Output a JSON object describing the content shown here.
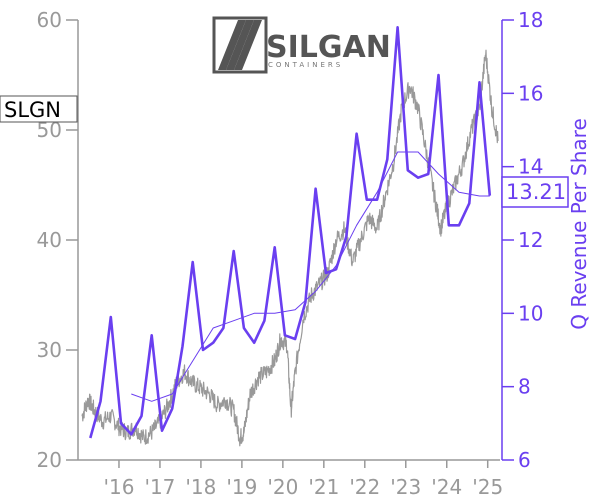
{
  "ticker": "SLGN",
  "logo": {
    "word": "SILGAN",
    "sub": "CONTAINERS"
  },
  "colors": {
    "price": "#999999",
    "revenue": "#6a3ff0",
    "trend": "#6a3ff0",
    "axis_left": "#999999",
    "axis_right": "#6a3ff0"
  },
  "chart_data": {
    "type": "line",
    "title": "",
    "ylabel_right": "Q Revenue Per Share",
    "x_ticks": [
      "'16",
      "'17",
      "'18",
      "'19",
      "'20",
      "'21",
      "'22",
      "'23",
      "'24",
      "'25"
    ],
    "xlim": [
      2015.0,
      2025.3
    ],
    "y_left": {
      "ticks": [
        20,
        30,
        40,
        50,
        60
      ],
      "lim": [
        20,
        60
      ]
    },
    "y_right": {
      "ticks": [
        6,
        8,
        10,
        12,
        14,
        16,
        18
      ],
      "lim": [
        6,
        18
      ]
    },
    "last_value_label": "13.21",
    "series": [
      {
        "axis": "left",
        "points": [
          [
            2015.1,
            24.0
          ],
          [
            2015.25,
            25.5
          ],
          [
            2015.4,
            24.5
          ],
          [
            2015.6,
            23.5
          ],
          [
            2015.8,
            24.0
          ],
          [
            2016.0,
            23.0
          ],
          [
            2016.2,
            22.5
          ],
          [
            2016.4,
            23.0
          ],
          [
            2016.6,
            22.0
          ],
          [
            2016.8,
            22.5
          ],
          [
            2017.0,
            23.5
          ],
          [
            2017.2,
            25.0
          ],
          [
            2017.4,
            27.0
          ],
          [
            2017.6,
            28.0
          ],
          [
            2017.8,
            27.0
          ],
          [
            2018.0,
            26.5
          ],
          [
            2018.2,
            26.0
          ],
          [
            2018.4,
            25.0
          ],
          [
            2018.6,
            25.5
          ],
          [
            2018.8,
            24.5
          ],
          [
            2018.95,
            22.0
          ],
          [
            2019.05,
            22.5
          ],
          [
            2019.2,
            26.0
          ],
          [
            2019.4,
            27.5
          ],
          [
            2019.6,
            28.0
          ],
          [
            2019.8,
            29.0
          ],
          [
            2019.95,
            31.0
          ],
          [
            2020.1,
            30.5
          ],
          [
            2020.2,
            24.5
          ],
          [
            2020.3,
            28.0
          ],
          [
            2020.5,
            33.0
          ],
          [
            2020.7,
            35.0
          ],
          [
            2020.9,
            36.0
          ],
          [
            2021.1,
            37.0
          ],
          [
            2021.3,
            40.0
          ],
          [
            2021.5,
            41.0
          ],
          [
            2021.7,
            38.0
          ],
          [
            2021.9,
            40.0
          ],
          [
            2022.1,
            42.0
          ],
          [
            2022.3,
            41.0
          ],
          [
            2022.5,
            44.0
          ],
          [
            2022.7,
            47.0
          ],
          [
            2022.9,
            52.0
          ],
          [
            2023.1,
            54.0
          ],
          [
            2023.3,
            52.0
          ],
          [
            2023.5,
            48.0
          ],
          [
            2023.7,
            44.0
          ],
          [
            2023.85,
            41.0
          ],
          [
            2024.0,
            43.0
          ],
          [
            2024.2,
            45.0
          ],
          [
            2024.4,
            47.0
          ],
          [
            2024.6,
            50.0
          ],
          [
            2024.8,
            52.0
          ],
          [
            2024.95,
            57.0
          ],
          [
            2025.1,
            52.0
          ],
          [
            2025.25,
            49.0
          ]
        ]
      },
      {
        "name": "Q Revenue Per Share",
        "axis": "right",
        "points": [
          [
            2015.3,
            6.6
          ],
          [
            2015.55,
            7.6
          ],
          [
            2015.8,
            9.9
          ],
          [
            2016.05,
            7.0
          ],
          [
            2016.3,
            6.7
          ],
          [
            2016.55,
            7.2
          ],
          [
            2016.8,
            9.4
          ],
          [
            2017.05,
            6.8
          ],
          [
            2017.3,
            7.4
          ],
          [
            2017.55,
            9.1
          ],
          [
            2017.8,
            11.4
          ],
          [
            2018.05,
            9.0
          ],
          [
            2018.3,
            9.2
          ],
          [
            2018.55,
            9.6
          ],
          [
            2018.8,
            11.7
          ],
          [
            2019.05,
            9.6
          ],
          [
            2019.3,
            9.2
          ],
          [
            2019.55,
            9.8
          ],
          [
            2019.8,
            11.8
          ],
          [
            2020.05,
            9.4
          ],
          [
            2020.3,
            9.3
          ],
          [
            2020.55,
            10.3
          ],
          [
            2020.8,
            13.4
          ],
          [
            2021.05,
            11.1
          ],
          [
            2021.3,
            11.2
          ],
          [
            2021.55,
            12.1
          ],
          [
            2021.8,
            14.9
          ],
          [
            2022.05,
            13.1
          ],
          [
            2022.3,
            13.1
          ],
          [
            2022.55,
            14.2
          ],
          [
            2022.8,
            17.8
          ],
          [
            2023.05,
            13.9
          ],
          [
            2023.3,
            13.7
          ],
          [
            2023.55,
            13.8
          ],
          [
            2023.8,
            16.5
          ],
          [
            2024.05,
            12.4
          ],
          [
            2024.3,
            12.4
          ],
          [
            2024.55,
            13.0
          ],
          [
            2024.8,
            16.3
          ],
          [
            2025.05,
            13.21
          ]
        ]
      },
      {
        "axis": "right",
        "points": [
          [
            2016.3,
            7.8
          ],
          [
            2016.8,
            7.6
          ],
          [
            2017.3,
            7.8
          ],
          [
            2017.8,
            8.7
          ],
          [
            2018.3,
            9.6
          ],
          [
            2018.8,
            9.8
          ],
          [
            2019.3,
            10.0
          ],
          [
            2019.8,
            10.0
          ],
          [
            2020.3,
            10.1
          ],
          [
            2020.8,
            10.6
          ],
          [
            2021.3,
            11.3
          ],
          [
            2021.8,
            12.4
          ],
          [
            2022.3,
            13.3
          ],
          [
            2022.8,
            14.4
          ],
          [
            2023.3,
            14.4
          ],
          [
            2023.8,
            13.8
          ],
          [
            2024.3,
            13.3
          ],
          [
            2024.8,
            13.2
          ],
          [
            2025.05,
            13.2
          ]
        ]
      }
    ]
  }
}
